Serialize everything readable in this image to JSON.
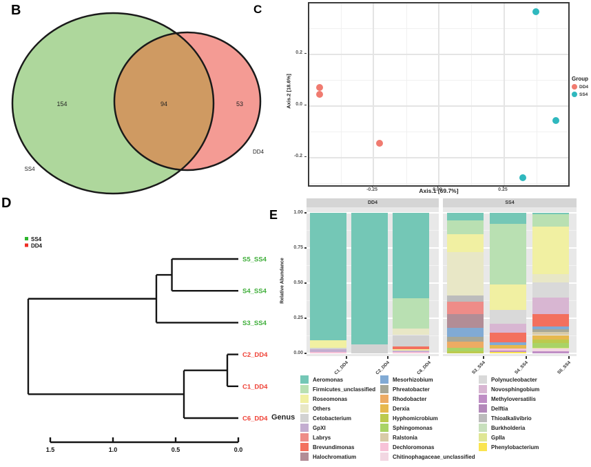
{
  "panels": {
    "b": {
      "letter": "B",
      "venn": {
        "left_label": "SS4",
        "left_count": "154",
        "overlap_count": "94",
        "right_count": "53",
        "right_label": "DD4",
        "left_color": "#aed79c",
        "overlap_color": "#cf9a62",
        "right_color": "#f49b94",
        "outline_color": "#1a1a1a"
      }
    },
    "c": {
      "letter": "C"
    },
    "d": {
      "letter": "D"
    },
    "e": {
      "letter": "E"
    }
  },
  "chart_data": [
    {
      "panel": "C",
      "type": "scatter",
      "xlabel": "Axis.1  [69.7%]",
      "ylabel": "Axis.2  [18.6%]",
      "legend_title": "Group",
      "xlim": [
        -0.495,
        0.495
      ],
      "ylim": [
        -0.307,
        0.397
      ],
      "xticks": [
        "-0.25",
        "0.00",
        "0.25"
      ],
      "yticks": [
        "0.2",
        "0.0",
        "-0.2"
      ],
      "grid": true,
      "legend_position": "right",
      "series": [
        {
          "name": "DD4",
          "color": "#F07B70",
          "points": [
            [
              -0.455,
              0.072
            ],
            [
              -0.455,
              0.045
            ],
            [
              -0.226,
              -0.144
            ]
          ]
        },
        {
          "name": "SS4",
          "color": "#2FB8BE",
          "points": [
            [
              0.371,
              0.365
            ],
            [
              0.447,
              -0.056
            ],
            [
              0.321,
              -0.277
            ]
          ]
        }
      ]
    },
    {
      "panel": "D",
      "type": "dendrogram",
      "legend": [
        {
          "label": "SS4",
          "color": "#2db52d"
        },
        {
          "label": "DD4",
          "color": "#ee2e24"
        }
      ],
      "label_colors": {
        "SS4": "#3fae3a",
        "DD4": "#ef4136"
      },
      "axis_ticks": [
        "1.5",
        "1.0",
        "0.5",
        "0.0"
      ],
      "tree": {
        "h": 1.676,
        "children": [
          {
            "h": 0.654,
            "children": [
              {
                "h": 0.53,
                "children": [
                  {
                    "leaf": "S5_SS4",
                    "group": "SS4"
                  },
                  {
                    "leaf": "S4_SS4",
                    "group": "SS4"
                  }
                ]
              },
              {
                "leaf": "S3_SS4",
                "group": "SS4"
              }
            ]
          },
          {
            "h": 0.434,
            "children": [
              {
                "h": 0.088,
                "children": [
                  {
                    "leaf": "C2_DD4",
                    "group": "DD4"
                  },
                  {
                    "leaf": "C1_DD4",
                    "group": "DD4"
                  }
                ]
              },
              {
                "leaf": "C6_DD4",
                "group": "DD4"
              }
            ]
          }
        ]
      }
    },
    {
      "panel": "E",
      "type": "bar",
      "stacked": true,
      "ylabel": "Relative Abundance",
      "genus_title": "Genus",
      "yticks": [
        "1.00",
        "0.75",
        "0.50",
        "0.25",
        "0.00"
      ],
      "facets": [
        {
          "label": "DD4",
          "bars": [
            {
              "label": "C1_DD4",
              "segments": [
                [
                  "Dechloromonas",
                  0.01
                ],
                [
                  "GpXI",
                  0.02
                ],
                [
                  "Cetobacterium",
                  0.01
                ],
                [
                  "Roseomonas",
                  0.055
                ],
                [
                  "Aeromonas",
                  0.905
                ]
              ]
            },
            {
              "label": "C2_DD4",
              "segments": [
                [
                  "Cetobacterium",
                  0.065
                ],
                [
                  "Aeromonas",
                  0.935
                ]
              ]
            },
            {
              "label": "C6_DD4",
              "segments": [
                [
                  "Dechloromonas",
                  0.01
                ],
                [
                  "GpXI",
                  0.01
                ],
                [
                  "Roseomonas",
                  0.01
                ],
                [
                  "Brevundimonas",
                  0.017
                ],
                [
                  "Cetobacterium",
                  0.083
                ],
                [
                  "Others",
                  0.045
                ],
                [
                  "Firmicutes_unclassified",
                  0.215
                ],
                [
                  "Aeromonas",
                  0.61
                ]
              ]
            }
          ]
        },
        {
          "label": "SS4",
          "bars": [
            {
              "label": "S3_SS4",
              "segments": [
                [
                  "Hyphomicrobium",
                  0.015
                ],
                [
                  "Sphingomonas",
                  0.025
                ],
                [
                  "Rhodobacter",
                  0.045
                ],
                [
                  "Phreatobacter",
                  0.035
                ],
                [
                  "Mesorhizobium",
                  0.06
                ],
                [
                  "Halochromatium",
                  0.1
                ],
                [
                  "Labrys",
                  0.09
                ],
                [
                  "Thioalkalivibrio",
                  0.04
                ],
                [
                  "Others",
                  0.31
                ],
                [
                  "Roseomonas",
                  0.13
                ],
                [
                  "Firmicutes_unclassified",
                  0.095
                ],
                [
                  "Aeromonas",
                  0.055
                ]
              ]
            },
            {
              "label": "S4_SS4",
              "segments": [
                [
                  "Phenylobacterium",
                  0.01
                ],
                [
                  "Methyloversatilis",
                  0.01
                ],
                [
                  "Dechloromonas",
                  0.015
                ],
                [
                  "Derxia",
                  0.025
                ],
                [
                  "Mesorhizobium",
                  0.02
                ],
                [
                  "Brevundimonas",
                  0.067
                ],
                [
                  "Novosphingobium",
                  0.063
                ],
                [
                  "Polynucleobacter",
                  0.1
                ],
                [
                  "Roseomonas",
                  0.18
                ],
                [
                  "Firmicutes_unclassified",
                  0.43
                ],
                [
                  "Aeromonas",
                  0.08
                ]
              ]
            },
            {
              "label": "S5_SS4",
              "segments": [
                [
                  "Methyloversatilis",
                  0.015
                ],
                [
                  "Chitinophagaceae_unclassified",
                  0.02
                ],
                [
                  "GpIIa",
                  0.005
                ],
                [
                  "Sphingomonas",
                  0.033
                ],
                [
                  "Hyphomicrobium",
                  0.027
                ],
                [
                  "Derxia",
                  0.03
                ],
                [
                  "Ralstonia",
                  0.022
                ],
                [
                  "Phreatobacter",
                  0.018
                ],
                [
                  "Mesorhizobium",
                  0.02
                ],
                [
                  "Brevundimonas",
                  0.09
                ],
                [
                  "Novosphingobium",
                  0.115
                ],
                [
                  "Polynucleobacter",
                  0.11
                ],
                [
                  "Others",
                  0.06
                ],
                [
                  "Roseomonas",
                  0.335
                ],
                [
                  "Firmicutes_unclassified",
                  0.09
                ],
                [
                  "Aeromonas",
                  0.01
                ]
              ]
            }
          ]
        }
      ],
      "genus_colors": {
        "Aeromonas": "#74c7b6",
        "Firmicutes_unclassified": "#b9e0b2",
        "Roseomonas": "#f1f0a2",
        "Others": "#e8e7c6",
        "Cetobacterium": "#d2d2d2",
        "GpXI": "#c3add0",
        "Labrys": "#ee8c88",
        "Brevundimonas": "#f3705e",
        "Halochromatium": "#b28d96",
        "Mesorhizobium": "#81aad4",
        "Phreatobacter": "#a7a796",
        "Rhodobacter": "#edab63",
        "Derxia": "#e6b84e",
        "Hyphomicrobium": "#bcca4e",
        "Sphingomonas": "#a9d366",
        "Ralstonia": "#d8cba8",
        "Dechloromonas": "#f7c2d8",
        "Chitinophagaceae_unclassified": "#f2d7e2",
        "Polynucleobacter": "#d9d9d9",
        "Novosphingobium": "#d8b6d2",
        "Methyloversatilis": "#bf8ec5",
        "Delftia": "#b389ba",
        "Thioalkalivibrio": "#bcbcbc",
        "Burkholderia": "#c8e0bd",
        "GpIIa": "#dfe695",
        "Phenylobacterium": "#fae44f"
      },
      "legend_columns": [
        [
          "Aeromonas",
          "Firmicutes_unclassified",
          "Roseomonas",
          "Others",
          "Cetobacterium",
          "GpXI",
          "Labrys",
          "Brevundimonas",
          "Halochromatium"
        ],
        [
          "Mesorhizobium",
          "Phreatobacter",
          "Rhodobacter",
          "Derxia",
          "Hyphomicrobium",
          "Sphingomonas",
          "Ralstonia",
          "Dechloromonas",
          "Chitinophagaceae_unclassified"
        ],
        [
          "Polynucleobacter",
          "Novosphingobium",
          "Methyloversatilis",
          "Delftia",
          "Thioalkalivibrio",
          "Burkholderia",
          "GpIIa",
          "Phenylobacterium"
        ]
      ]
    }
  ]
}
